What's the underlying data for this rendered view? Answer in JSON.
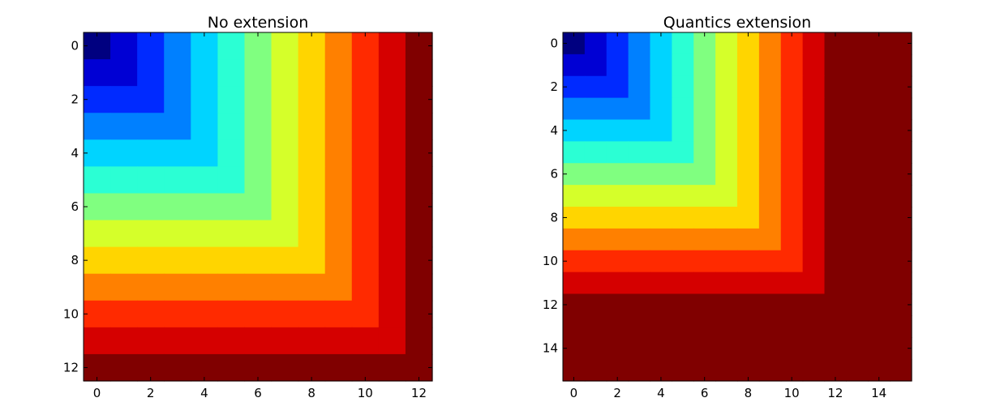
{
  "chart_data": [
    {
      "type": "heatmap",
      "title": "No extension",
      "size": 13,
      "value_rule": "max(row, col)",
      "xlabel": "",
      "ylabel": "",
      "xlim": [
        -0.5,
        12.5
      ],
      "ylim": [
        12.5,
        -0.5
      ],
      "xticks": [
        0,
        2,
        4,
        6,
        8,
        10,
        12
      ],
      "yticks": [
        0,
        2,
        4,
        6,
        8,
        10,
        12
      ],
      "colormap": "jet",
      "color_range": [
        0,
        12
      ],
      "grid": false,
      "legend": "none"
    },
    {
      "type": "heatmap",
      "title": "Quantics extension",
      "size": 16,
      "value_rule": "min(max(row, col), 12)",
      "xlabel": "",
      "ylabel": "",
      "xlim": [
        -0.5,
        15.5
      ],
      "ylim": [
        15.5,
        -0.5
      ],
      "xticks": [
        0,
        2,
        4,
        6,
        8,
        10,
        12,
        14
      ],
      "yticks": [
        0,
        2,
        4,
        6,
        8,
        10,
        12,
        14
      ],
      "colormap": "jet",
      "color_range": [
        0,
        12
      ],
      "grid": false,
      "legend": "none"
    }
  ]
}
